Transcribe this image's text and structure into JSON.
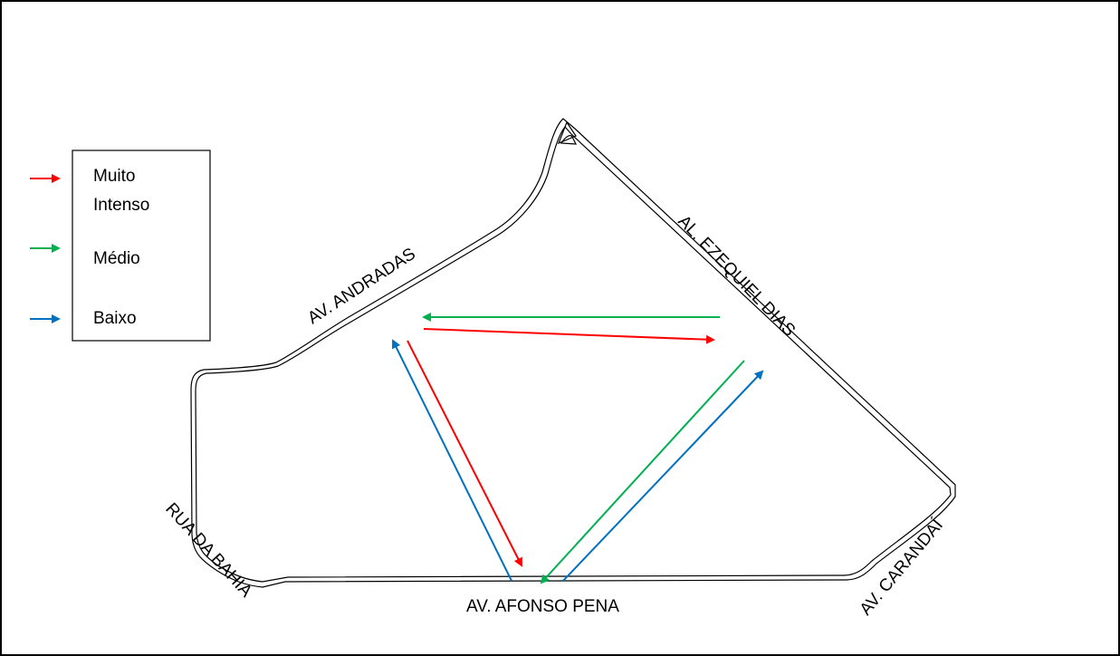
{
  "legend": {
    "items": [
      {
        "label_lines": [
          "Muito",
          "Intenso"
        ],
        "color": "#ff0000"
      },
      {
        "label_lines": [
          "Médio"
        ],
        "color": "#00b050"
      },
      {
        "label_lines": [
          "Baixo"
        ],
        "color": "#0070c0"
      }
    ]
  },
  "streets": {
    "andradas": "AV. ANDRADAS",
    "ezequiel": "AL. EZEQUIEL DIAS",
    "bahia": "RUA DA BAHIA",
    "afonso": "AV. AFONSO PENA",
    "carandai": "AV. CARANDAÍ"
  },
  "flows": [
    {
      "from": "AL. EZEQUIEL DIAS",
      "to": "AV. ANDRADAS",
      "intensity": "Médio"
    },
    {
      "from": "AV. ANDRADAS",
      "to": "AL. EZEQUIEL DIAS",
      "intensity": "Muito Intenso"
    },
    {
      "from": "AV. ANDRADAS",
      "to": "AV. AFONSO PENA",
      "intensity": "Muito Intenso"
    },
    {
      "from": "AV. AFONSO PENA",
      "to": "AV. ANDRADAS",
      "intensity": "Baixo"
    },
    {
      "from": "AL. EZEQUIEL DIAS",
      "to": "AV. AFONSO PENA",
      "intensity": "Médio"
    },
    {
      "from": "AV. AFONSO PENA",
      "to": "AL. EZEQUIEL DIAS",
      "intensity": "Baixo"
    }
  ]
}
